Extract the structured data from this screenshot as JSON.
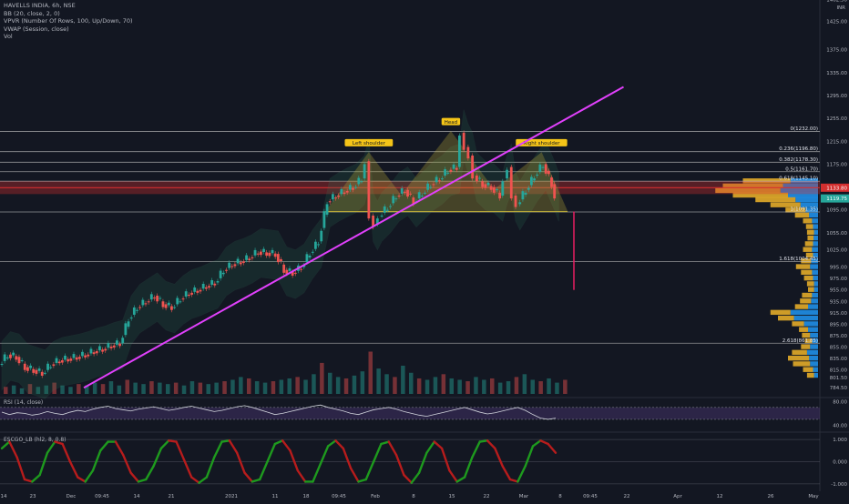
{
  "legend": {
    "symbol": "HAVELLS INDIA, 6h, NSE",
    "indicators": [
      "BB (20, close, 2, 0)",
      "VPVR (Number Of Rows, 100, Up/Down, 70)",
      "VWAP (Session, close)",
      "Vol"
    ]
  },
  "currency": "INR",
  "colors": {
    "background": "#131722",
    "up": "#26a69a",
    "down": "#ef5350",
    "trendline": "#e040fb",
    "pattern_fill": "#c6b53a",
    "fib_line": "#c8c8c8",
    "resistance_band": "#d32f2f",
    "projection": "#e91e63",
    "vp_up": "#2196f3",
    "vp_down": "#f0b429",
    "rsi_line": "#d1d4dc",
    "rsi_band": "#5b3e8c",
    "osc_up": "#1e9a1e",
    "osc_down": "#b71c1c"
  },
  "chart_data": [
    {
      "type": "candlestick",
      "title": "HAVELLS INDIA, 6h, NSE",
      "ylim": [
        770,
        1462
      ],
      "y_ticks": [
        1462.5,
        1425.0,
        1375.0,
        1335.0,
        1295.0,
        1255.0,
        1215.0,
        1175.0,
        1135.0,
        1095.0,
        1055.0,
        1025.0,
        995.0,
        975.0,
        955.0,
        935.0,
        915.0,
        895.0,
        875.0,
        855.0,
        835.0,
        815.0,
        801.5,
        784.5
      ],
      "x_ticks": [
        "14",
        "23",
        "Dec",
        "09:45",
        "14",
        "21",
        "2021",
        "11",
        "18",
        "09:45",
        "Feb",
        "8",
        "15",
        "22",
        "Mar",
        "8",
        "09:45",
        "22",
        "Apr",
        "12",
        "26",
        "May"
      ],
      "price_series": [
        [
          0,
          825
        ],
        [
          4,
          842
        ],
        [
          8,
          838
        ],
        [
          12,
          820
        ],
        [
          16,
          815
        ],
        [
          20,
          810
        ],
        [
          24,
          825
        ],
        [
          28,
          832
        ],
        [
          32,
          835
        ],
        [
          36,
          838
        ],
        [
          40,
          842
        ],
        [
          44,
          848
        ],
        [
          48,
          852
        ],
        [
          52,
          858
        ],
        [
          56,
          862
        ],
        [
          60,
          905
        ],
        [
          64,
          925
        ],
        [
          68,
          935
        ],
        [
          72,
          945
        ],
        [
          76,
          930
        ],
        [
          80,
          925
        ],
        [
          84,
          940
        ],
        [
          88,
          950
        ],
        [
          92,
          955
        ],
        [
          96,
          962
        ],
        [
          100,
          968
        ],
        [
          104,
          990
        ],
        [
          108,
          1000
        ],
        [
          112,
          1005
        ],
        [
          116,
          1012
        ],
        [
          120,
          1022
        ],
        [
          124,
          1020
        ],
        [
          128,
          1018
        ],
        [
          132,
          990
        ],
        [
          136,
          985
        ],
        [
          140,
          995
        ],
        [
          144,
          1020
        ],
        [
          148,
          1040
        ],
        [
          152,
          1110
        ],
        [
          156,
          1120
        ],
        [
          160,
          1128
        ],
        [
          164,
          1135
        ],
        [
          168,
          1150
        ],
        [
          170,
          1180
        ],
        [
          172,
          1085
        ],
        [
          174,
          1070
        ],
        [
          176,
          1085
        ],
        [
          180,
          1100
        ],
        [
          184,
          1120
        ],
        [
          188,
          1130
        ],
        [
          192,
          1110
        ],
        [
          196,
          1125
        ],
        [
          200,
          1140
        ],
        [
          204,
          1150
        ],
        [
          208,
          1165
        ],
        [
          212,
          1170
        ],
        [
          214,
          1230
        ],
        [
          216,
          1205
        ],
        [
          218,
          1190
        ],
        [
          220,
          1155
        ],
        [
          224,
          1140
        ],
        [
          228,
          1135
        ],
        [
          232,
          1120
        ],
        [
          234,
          1150
        ],
        [
          236,
          1170
        ],
        [
          238,
          1120
        ],
        [
          240,
          1105
        ],
        [
          244,
          1130
        ],
        [
          248,
          1155
        ],
        [
          252,
          1175
        ],
        [
          256,
          1140
        ],
        [
          258,
          1120
        ]
      ],
      "last_price": 1119.75,
      "resistance_price": 1133.8,
      "fib_levels": [
        {
          "label": "0(1232.00)",
          "price": 1232.0
        },
        {
          "label": "0.236(1196.80)",
          "price": 1196.8
        },
        {
          "label": "0.382(1178.30)",
          "price": 1178.3
        },
        {
          "label": "0.5(1161.70)",
          "price": 1161.7
        },
        {
          "label": "0.618(1145.10)",
          "price": 1145.1
        },
        {
          "label": "1(1091.35)",
          "price": 1091.35
        },
        {
          "label": "1.618(1004.45)",
          "price": 1004.45
        },
        {
          "label": "2.618(861.85)",
          "price": 861.85
        }
      ],
      "pattern": {
        "labels": [
          "Left shoulder",
          "Head",
          "Right shoulder"
        ],
        "neckline": 1092,
        "points": [
          [
            150,
            1092
          ],
          [
            170,
            1195
          ],
          [
            185,
            1120
          ],
          [
            208,
            1232
          ],
          [
            228,
            1130
          ],
          [
            250,
            1195
          ],
          [
            262,
            1092
          ]
        ]
      },
      "trendline": {
        "from": [
          38,
          784
        ],
        "to": [
          288,
          1310
        ]
      },
      "projection": {
        "x": 265,
        "from": 1092,
        "to": 955
      },
      "volume_bars": [
        5,
        6,
        4,
        7,
        5,
        6,
        8,
        6,
        5,
        7,
        6,
        8,
        7,
        9,
        6,
        10,
        8,
        7,
        9,
        8,
        7,
        8,
        6,
        9,
        8,
        7,
        8,
        9,
        10,
        12,
        11,
        9,
        8,
        9,
        10,
        11,
        12,
        10,
        14,
        22,
        15,
        12,
        11,
        13,
        16,
        30,
        18,
        14,
        12,
        20,
        15,
        11,
        10,
        12,
        14,
        11,
        10,
        9,
        12,
        10,
        11,
        8,
        9,
        12,
        14,
        10,
        9,
        11,
        8,
        10
      ],
      "volume_profile": [
        {
          "price": 1145,
          "up": 55,
          "down": 95
        },
        {
          "price": 1136,
          "up": 70,
          "down": 120
        },
        {
          "price": 1128,
          "up": 75,
          "down": 130
        },
        {
          "price": 1120,
          "up": 60,
          "down": 110
        },
        {
          "price": 1112,
          "up": 45,
          "down": 80
        },
        {
          "price": 1103,
          "up": 35,
          "down": 60
        },
        {
          "price": 1094,
          "up": 25,
          "down": 40
        },
        {
          "price": 1085,
          "up": 18,
          "down": 28
        },
        {
          "price": 1075,
          "up": 12,
          "down": 18
        },
        {
          "price": 1065,
          "up": 10,
          "down": 14
        },
        {
          "price": 1055,
          "up": 8,
          "down": 14
        },
        {
          "price": 1045,
          "up": 9,
          "down": 12
        },
        {
          "price": 1035,
          "up": 10,
          "down": 16
        },
        {
          "price": 1025,
          "up": 12,
          "down": 18
        },
        {
          "price": 1015,
          "up": 10,
          "down": 14
        },
        {
          "price": 1005,
          "up": 14,
          "down": 20
        },
        {
          "price": 995,
          "up": 16,
          "down": 28
        },
        {
          "price": 985,
          "up": 12,
          "down": 22
        },
        {
          "price": 975,
          "up": 10,
          "down": 18
        },
        {
          "price": 965,
          "up": 8,
          "down": 14
        },
        {
          "price": 955,
          "up": 8,
          "down": 12
        },
        {
          "price": 945,
          "up": 12,
          "down": 20
        },
        {
          "price": 935,
          "up": 14,
          "down": 22
        },
        {
          "price": 925,
          "up": 20,
          "down": 26
        },
        {
          "price": 915,
          "up": 55,
          "down": 40
        },
        {
          "price": 905,
          "up": 48,
          "down": 32
        },
        {
          "price": 895,
          "up": 28,
          "down": 24
        },
        {
          "price": 885,
          "up": 20,
          "down": 18
        },
        {
          "price": 875,
          "up": 16,
          "down": 16
        },
        {
          "price": 865,
          "up": 12,
          "down": 14
        },
        {
          "price": 855,
          "up": 16,
          "down": 18
        },
        {
          "price": 845,
          "up": 22,
          "down": 30
        },
        {
          "price": 835,
          "up": 18,
          "down": 42
        },
        {
          "price": 825,
          "up": 16,
          "down": 34
        },
        {
          "price": 815,
          "up": 10,
          "down": 20
        },
        {
          "price": 805,
          "up": 8,
          "down": 14
        }
      ]
    },
    {
      "type": "line",
      "title": "RSI (14, close)",
      "ylim": [
        30,
        85
      ],
      "y_ticks": [
        80.0,
        40.0
      ],
      "series": [
        {
          "values": [
            62,
            58,
            61,
            60,
            57,
            59,
            63,
            60,
            58,
            62,
            65,
            63,
            67,
            70,
            72,
            68,
            66,
            64,
            67,
            69,
            71,
            68,
            65,
            67,
            70,
            72,
            69,
            66,
            63,
            65,
            68,
            71,
            73,
            70,
            66,
            62,
            58,
            60,
            63,
            66,
            69,
            72,
            74,
            70,
            67,
            64,
            60,
            58,
            62,
            66,
            68,
            70,
            67,
            63,
            60,
            57,
            55,
            58,
            61,
            64,
            67,
            70,
            66,
            62,
            59,
            61,
            64,
            67,
            70,
            65,
            58,
            52,
            50,
            52
          ]
        }
      ]
    },
    {
      "type": "line",
      "title": "ESCGO_LB (hl2, 8, 0.8)",
      "ylim": [
        -1.25,
        1.25
      ],
      "y_ticks": [
        1.0,
        0.0,
        -1.0
      ],
      "series": [
        {
          "values": [
            0.6,
            0.9,
            0.2,
            -0.8,
            -0.9,
            -0.6,
            0.4,
            0.9,
            0.8,
            0.0,
            -0.7,
            -0.9,
            -0.4,
            0.5,
            0.9,
            0.9,
            0.3,
            -0.5,
            -0.9,
            -0.8,
            -0.2,
            0.6,
            0.95,
            0.9,
            0.1,
            -0.7,
            -0.95,
            -0.7,
            0.2,
            0.9,
            0.95,
            0.4,
            -0.5,
            -0.9,
            -0.8,
            0.0,
            0.8,
            0.95,
            0.5,
            -0.4,
            -0.9,
            -0.9,
            -0.1,
            0.7,
            0.95,
            0.6,
            -0.3,
            -0.9,
            -0.8,
            0.0,
            0.8,
            0.9,
            0.3,
            -0.6,
            -0.95,
            -0.5,
            0.4,
            0.9,
            0.6,
            -0.4,
            -0.9,
            -0.7,
            0.2,
            0.9,
            0.95,
            0.6,
            -0.2,
            -0.8,
            -0.9,
            -0.2,
            0.7,
            0.95,
            0.8,
            0.4
          ]
        }
      ]
    }
  ]
}
